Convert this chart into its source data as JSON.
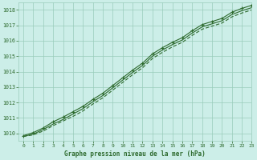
{
  "title": "Graphe pression niveau de la mer (hPa)",
  "bg_color": "#cceee8",
  "grid_color": "#99ccbb",
  "line_color": "#2d6a2d",
  "xlim": [
    -0.5,
    23
  ],
  "ylim": [
    1009.5,
    1018.5
  ],
  "xticks": [
    0,
    1,
    2,
    3,
    4,
    5,
    6,
    7,
    8,
    9,
    10,
    11,
    12,
    13,
    14,
    15,
    16,
    17,
    18,
    19,
    20,
    21,
    22,
    23
  ],
  "yticks": [
    1010,
    1011,
    1012,
    1013,
    1014,
    1015,
    1016,
    1017,
    1018
  ],
  "series_upper_x": [
    0,
    1,
    2,
    3,
    4,
    5,
    6,
    7,
    8,
    9,
    10,
    11,
    12,
    13,
    14,
    15,
    16,
    17,
    18,
    19,
    20,
    21,
    22,
    23
  ],
  "series_upper_y": [
    1009.85,
    1010.05,
    1010.35,
    1010.75,
    1011.05,
    1011.4,
    1011.75,
    1012.2,
    1012.6,
    1013.1,
    1013.6,
    1014.1,
    1014.55,
    1015.15,
    1015.55,
    1015.9,
    1016.2,
    1016.65,
    1017.05,
    1017.25,
    1017.45,
    1017.85,
    1018.1,
    1018.3
  ],
  "series_mid_x": [
    0,
    1,
    2,
    3,
    4,
    5,
    6,
    7,
    8,
    9,
    10,
    11,
    12,
    13,
    14,
    15,
    16,
    17,
    18,
    19,
    20,
    21,
    22,
    23
  ],
  "series_mid_y": [
    1009.8,
    1009.95,
    1010.25,
    1010.6,
    1010.9,
    1011.25,
    1011.6,
    1012.05,
    1012.45,
    1012.95,
    1013.45,
    1013.95,
    1014.4,
    1015.0,
    1015.4,
    1015.75,
    1016.05,
    1016.5,
    1016.9,
    1017.1,
    1017.3,
    1017.7,
    1017.95,
    1018.15
  ],
  "series_lower_x": [
    0,
    1,
    2,
    3,
    4,
    5,
    6,
    7,
    8,
    9,
    10,
    11,
    12,
    13,
    14,
    15,
    16,
    17,
    18,
    19,
    20,
    21,
    22,
    23
  ],
  "series_lower_y": [
    1009.8,
    1009.9,
    1010.15,
    1010.5,
    1010.8,
    1011.1,
    1011.45,
    1011.9,
    1012.3,
    1012.8,
    1013.3,
    1013.8,
    1014.25,
    1014.85,
    1015.25,
    1015.6,
    1015.9,
    1016.35,
    1016.75,
    1016.95,
    1017.15,
    1017.55,
    1017.8,
    1018.0
  ]
}
